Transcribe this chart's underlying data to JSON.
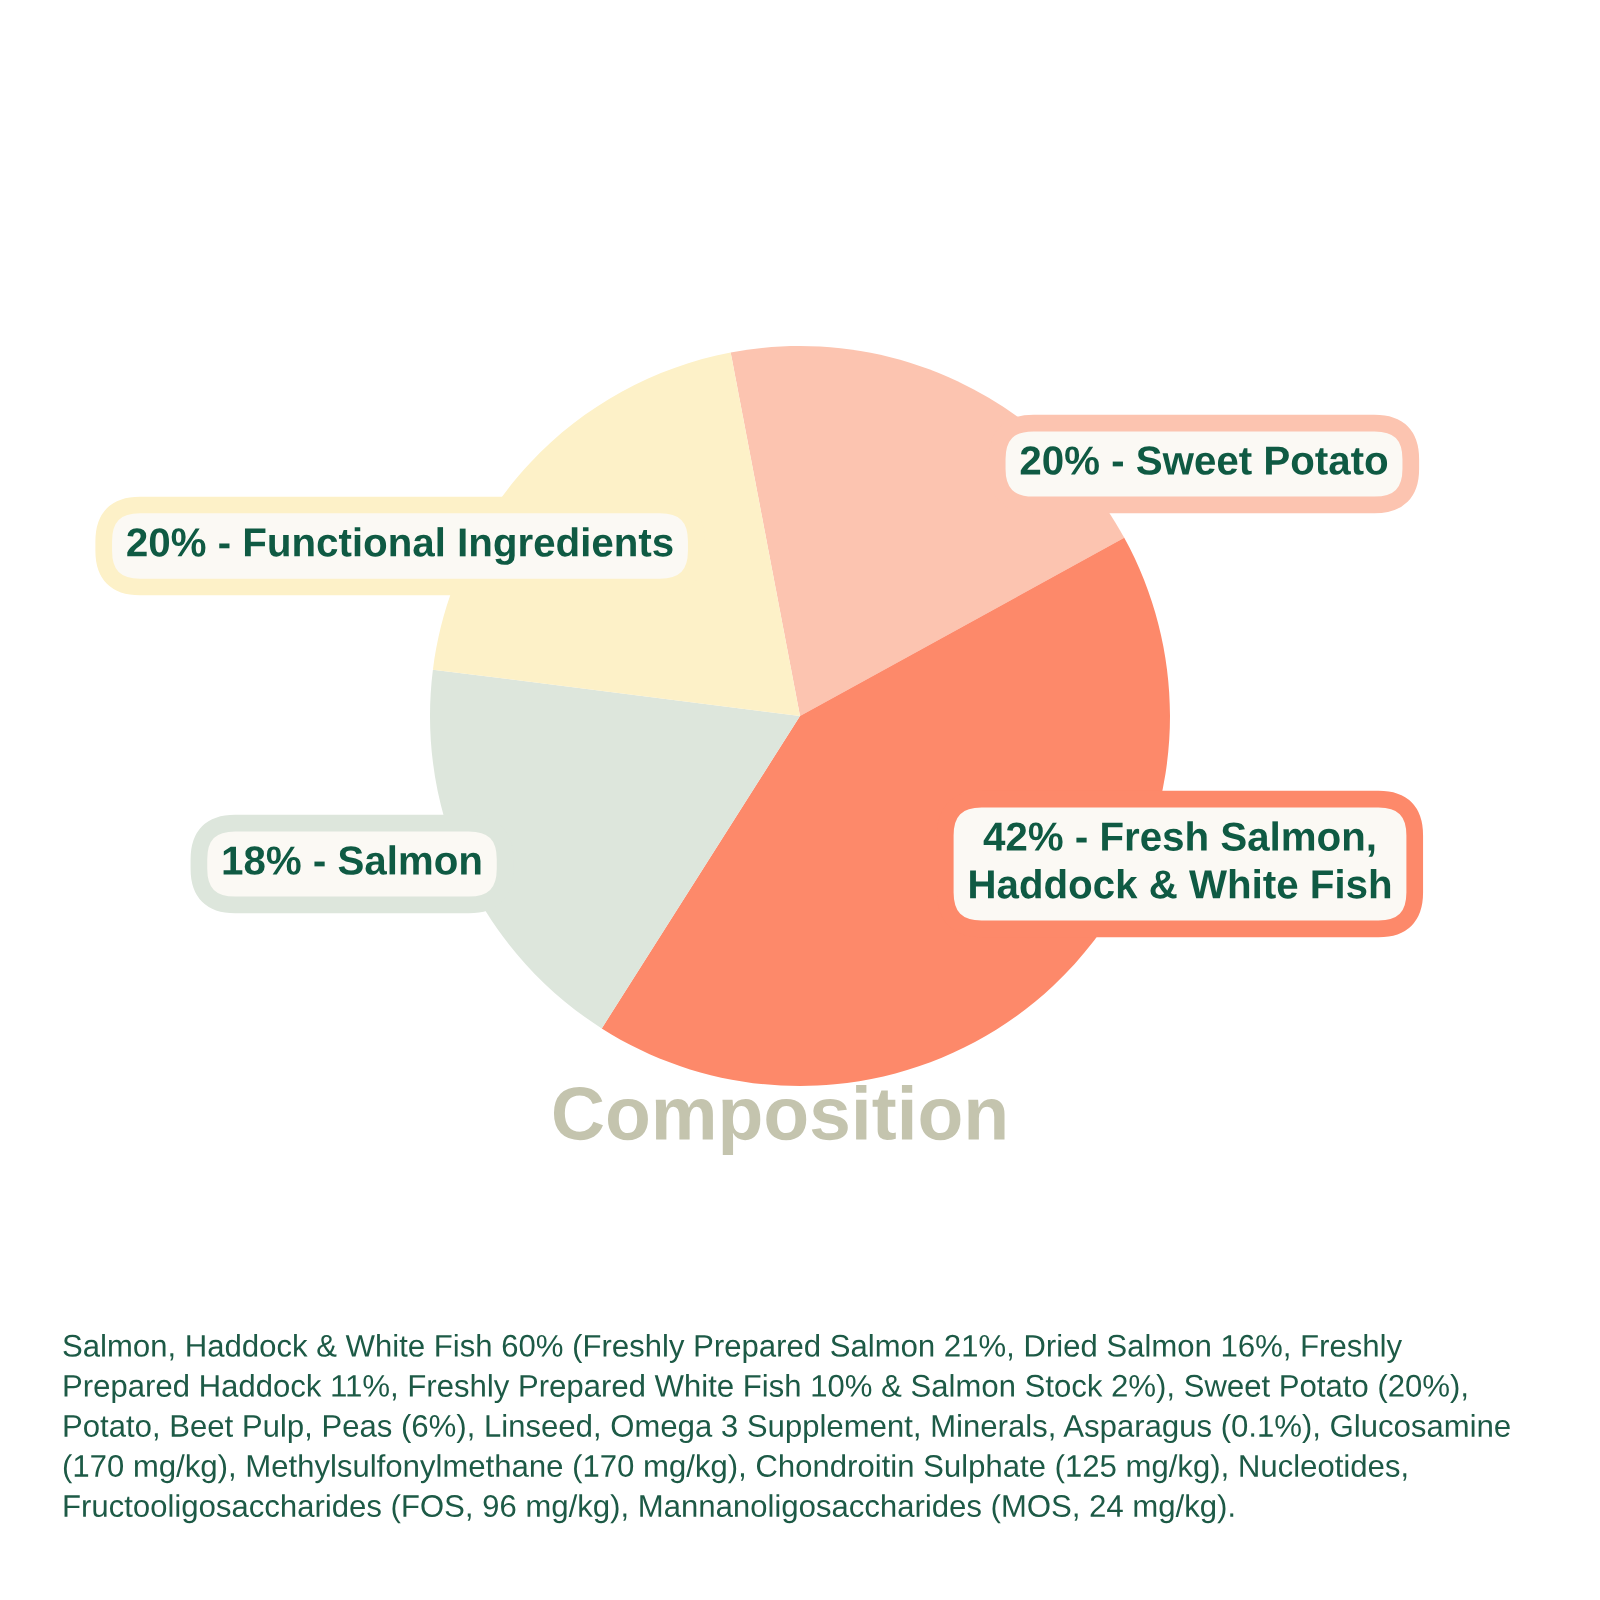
{
  "chart_data": {
    "type": "pie",
    "title": "Composition",
    "categories": [
      "20% - Sweet Potato",
      "42% - Fresh Salmon,\nHaddock & White Fish",
      "18% - Salmon",
      "20% - Functional Ingredients"
    ],
    "values": [
      20,
      42,
      18,
      20
    ],
    "colors": [
      "#fcc4b0",
      "#fd896a",
      "#dde6dc",
      "#fdf1c8"
    ],
    "annotations": [
      "Salmon, Haddock & White Fish 60% (Freshly Prepared Salmon 21%, Dried Salmon 16%, Freshly\nPrepared Haddock 11%, Freshly Prepared White Fish 10% & Salmon Stock 2%), Sweet Potato (20%),\nPotato, Beet Pulp, Peas (6%), Linseed, Omega 3 Supplement, Minerals, Asparagus (0.1%), Glucosamine\n(170 mg/kg), Methylsulfonylmethane (170 mg/kg), Chondroitin Sulphate (125 mg/kg), Nucleotides,\nFructooligosaccharides (FOS, 96 mg/kg), Mannanoligosaccharides (MOS, 24 mg/kg)."
    ]
  }
}
